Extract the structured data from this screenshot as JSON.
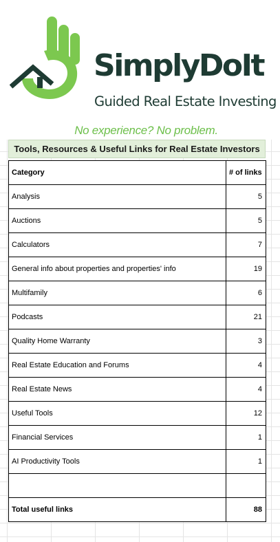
{
  "brand": {
    "name": "SimplyDoIt",
    "subtitle": "Guided Real Estate Investing",
    "tagline": "No experience? No problem.",
    "colors": {
      "green": "#7cc84f",
      "dark": "#1e3b33",
      "tagline": "#6cbf4a",
      "header_fill": "#e2efda"
    }
  },
  "sheet": {
    "title": "Tools, Resources & Useful Links for Real Estate Investors",
    "columns": [
      "Category",
      "# of links"
    ],
    "rows": [
      {
        "category": "Analysis",
        "links": "5"
      },
      {
        "category": "Auctions",
        "links": "5"
      },
      {
        "category": "Calculators",
        "links": "7"
      },
      {
        "category": "General info about properties and properties' info",
        "links": "19"
      },
      {
        "category": "Multifamily",
        "links": "6"
      },
      {
        "category": "Podcasts",
        "links": "21"
      },
      {
        "category": "Quality Home Warranty",
        "links": "3"
      },
      {
        "category": "Real Estate Education and Forums",
        "links": "4"
      },
      {
        "category": "Real Estate News",
        "links": "4"
      },
      {
        "category": "Useful Tools",
        "links": "12"
      },
      {
        "category": "Financial Services",
        "links": "1"
      },
      {
        "category": "AI Productivity Tools",
        "links": "1"
      },
      {
        "category": "",
        "links": ""
      }
    ],
    "total": {
      "label": "Total useful links",
      "value": "88"
    }
  }
}
